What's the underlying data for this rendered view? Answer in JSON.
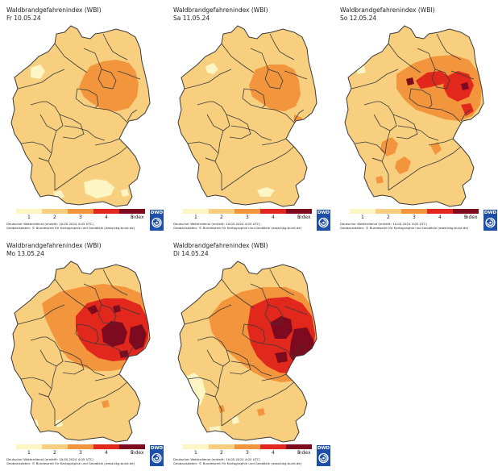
{
  "colors": {
    "class1": "#fdf5c4",
    "class2": "#f8cf7e",
    "class3": "#f2953d",
    "class4": "#e2281c",
    "class5": "#7d0a1e",
    "border": "#3a3a3a"
  },
  "panels": [
    {
      "title": "Waldbrandgefahrenindex (WBI)",
      "date": "Fr 10.05.24"
    },
    {
      "title": "Waldbrandgefahrenindex (WBI)",
      "date": "Sa 11.05.24"
    },
    {
      "title": "Waldbrandgefahrenindex (WBI)",
      "date": "So 12.05.24"
    },
    {
      "title": "Waldbrandgefahrenindex (WBI)",
      "date": "Mo 13.05.24"
    },
    {
      "title": "Waldbrandgefahrenindex (WBI)",
      "date": "Di 14.05.24"
    }
  ],
  "legend": {
    "labels": [
      "1",
      "2",
      "3",
      "4",
      "5"
    ],
    "unit": "Index"
  },
  "footer": {
    "line1": "Deutscher Wetterdienst (erstellt: 10.05.2024 4:05 UTC)",
    "line2": "Geobasisdaten: © Bundesamt für Kartographie und Geodäsie (www.bkg.bund.de)"
  },
  "logo_text": "DWD",
  "logo_icon": "dwd-swirl-icon"
}
